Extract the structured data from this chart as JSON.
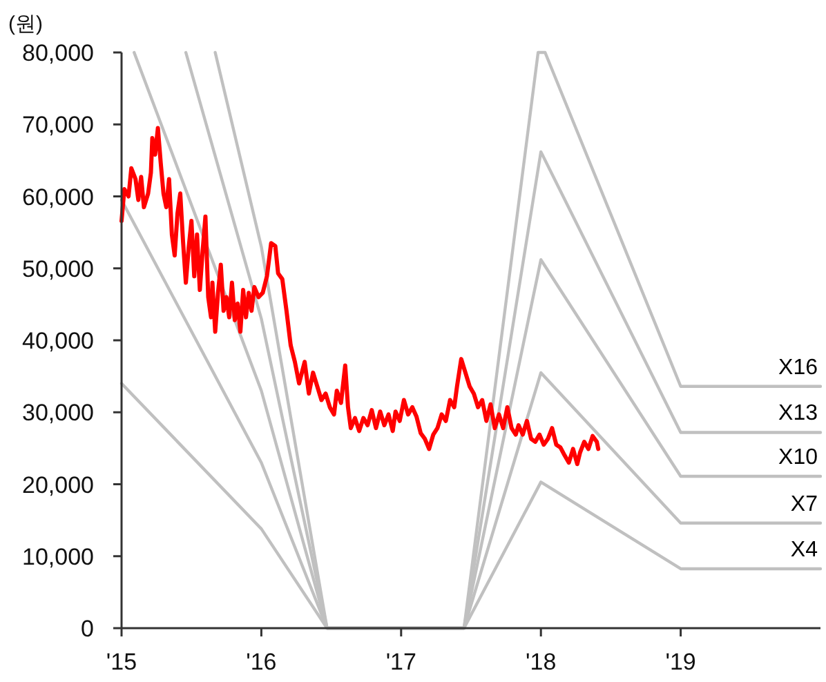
{
  "chart_data": {
    "type": "line",
    "ylabel": "(원)",
    "xlim": [
      2015,
      2020
    ],
    "xticks": [
      {
        "value": 2015,
        "label": "'15"
      },
      {
        "value": 2016,
        "label": "'16"
      },
      {
        "value": 2017,
        "label": "'17"
      },
      {
        "value": 2018,
        "label": "'18"
      },
      {
        "value": 2019,
        "label": "'19"
      }
    ],
    "ylim": [
      0,
      80000
    ],
    "yticks": [
      {
        "value": 0,
        "label": "0"
      },
      {
        "value": 10000,
        "label": "10,000"
      },
      {
        "value": 20000,
        "label": "20,000"
      },
      {
        "value": 30000,
        "label": "30,000"
      },
      {
        "value": 40000,
        "label": "40,000"
      },
      {
        "value": 50000,
        "label": "50,000"
      },
      {
        "value": 60000,
        "label": "60,000"
      },
      {
        "value": 70000,
        "label": "70,000"
      },
      {
        "value": 80000,
        "label": "80,000"
      }
    ],
    "series": [
      {
        "name": "X16",
        "color": "#c0c0c0",
        "x": [
          2015.67,
          2016.0,
          2016.47,
          2017.45,
          2017.98,
          2018.03,
          2019.0,
          2020
        ],
        "values": [
          80000,
          53000,
          0,
          0,
          80000,
          80000,
          33600,
          33600
        ]
      },
      {
        "name": "X13",
        "color": "#c0c0c0",
        "x": [
          2015.46,
          2016.0,
          2016.47,
          2017.45,
          2018.0,
          2019.0,
          2020
        ],
        "values": [
          80000,
          43000,
          0,
          0,
          66200,
          27200,
          27200
        ]
      },
      {
        "name": "X10",
        "color": "#c0c0c0",
        "x": [
          2015.09,
          2016.0,
          2016.47,
          2017.45,
          2018.0,
          2019.0,
          2020
        ],
        "values": [
          80000,
          33000,
          0,
          0,
          51200,
          21100,
          21100
        ]
      },
      {
        "name": "X7",
        "color": "#c0c0c0",
        "x": [
          2015.0,
          2016.0,
          2016.47,
          2017.45,
          2018.0,
          2019.0,
          2020
        ],
        "values": [
          59500,
          23000,
          0,
          0,
          35500,
          14600,
          14600
        ]
      },
      {
        "name": "X4",
        "color": "#c0c0c0",
        "x": [
          2015.0,
          2016.0,
          2016.47,
          2017.45,
          2018.0,
          2019.0,
          2020
        ],
        "values": [
          34000,
          13800,
          0,
          0,
          20300,
          8250,
          8250
        ]
      },
      {
        "color": "#ff0000",
        "x": [
          2015.0,
          2015.02,
          2015.05,
          2015.07,
          2015.1,
          2015.12,
          2015.14,
          2015.16,
          2015.19,
          2015.21,
          2015.22,
          2015.24,
          2015.26,
          2015.28,
          2015.3,
          2015.32,
          2015.34,
          2015.36,
          2015.38,
          2015.4,
          2015.42,
          2015.44,
          2015.46,
          2015.48,
          2015.5,
          2015.52,
          2015.54,
          2015.56,
          2015.58,
          2015.6,
          2015.62,
          2015.64,
          2015.65,
          2015.67,
          2015.69,
          2015.71,
          2015.73,
          2015.75,
          2015.77,
          2015.79,
          2015.81,
          2015.83,
          2015.85,
          2015.87,
          2015.89,
          2015.91,
          2015.93,
          2015.95,
          2015.98,
          2016.01,
          2016.04,
          2016.07,
          2016.1,
          2016.12,
          2016.15,
          2016.18,
          2016.21,
          2016.24,
          2016.27,
          2016.31,
          2016.34,
          2016.37,
          2016.4,
          2016.43,
          2016.46,
          2016.49,
          2016.52,
          2016.54,
          2016.57,
          2016.6,
          2016.62,
          2016.64,
          2016.67,
          2016.7,
          2016.73,
          2016.76,
          2016.79,
          2016.82,
          2016.85,
          2016.88,
          2016.91,
          2016.94,
          2016.96,
          2016.99,
          2017.02,
          2017.05,
          2017.08,
          2017.11,
          2017.14,
          2017.17,
          2017.2,
          2017.23,
          2017.26,
          2017.29,
          2017.32,
          2017.35,
          2017.38,
          2017.4,
          2017.43,
          2017.46,
          2017.49,
          2017.52,
          2017.55,
          2017.58,
          2017.61,
          2017.64,
          2017.67,
          2017.7,
          2017.73,
          2017.76,
          2017.79,
          2017.82,
          2017.84,
          2017.87,
          2017.9,
          2017.93,
          2017.96,
          2017.99,
          2018.02,
          2018.05,
          2018.08,
          2018.11,
          2018.14,
          2018.17,
          2018.2,
          2018.23,
          2018.26,
          2018.28,
          2018.31,
          2018.34,
          2018.37,
          2018.4,
          2018.41
        ],
        "values": [
          56600,
          61000,
          60000,
          63900,
          62400,
          59500,
          62700,
          58500,
          60400,
          63300,
          68100,
          65800,
          69500,
          64700,
          60400,
          58500,
          62400,
          54700,
          51800,
          57600,
          60400,
          53700,
          48000,
          52800,
          56600,
          48900,
          54700,
          47000,
          52400,
          57200,
          46000,
          43200,
          48000,
          41200,
          46600,
          50500,
          44100,
          46000,
          43200,
          48000,
          42800,
          45100,
          41200,
          47000,
          43200,
          46600,
          44100,
          47400,
          46000,
          46600,
          48900,
          53500,
          53100,
          49300,
          48500,
          44100,
          39300,
          37000,
          34000,
          37000,
          32600,
          35500,
          33600,
          31700,
          32600,
          30700,
          29700,
          33000,
          31300,
          36500,
          30700,
          27800,
          29200,
          27400,
          29200,
          28200,
          30300,
          27800,
          30100,
          28200,
          29700,
          27400,
          30100,
          28800,
          31700,
          29700,
          30700,
          29400,
          27100,
          26300,
          24900,
          26900,
          27800,
          29700,
          28800,
          31700,
          30700,
          33600,
          37400,
          35500,
          33600,
          32600,
          30700,
          31700,
          28800,
          31100,
          27800,
          29700,
          27800,
          30700,
          27800,
          26900,
          28200,
          26900,
          28800,
          26300,
          25900,
          26900,
          25500,
          26300,
          27800,
          25500,
          25100,
          24000,
          23000,
          24900,
          22800,
          24400,
          25900,
          24900,
          26700,
          25900,
          24900
        ]
      }
    ]
  }
}
